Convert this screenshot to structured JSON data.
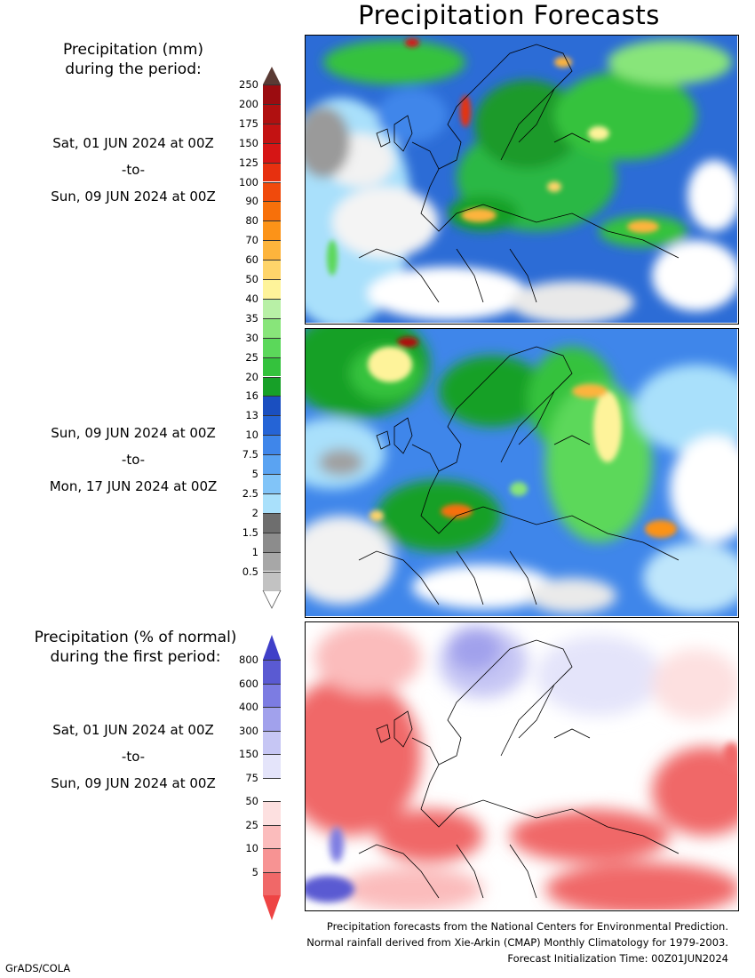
{
  "title": "Precipitation Forecasts",
  "legend_mm": {
    "heading_line1": "Precipitation (mm)",
    "heading_line2": "during the period:",
    "levels": [
      "250",
      "200",
      "175",
      "150",
      "125",
      "100",
      "90",
      "80",
      "70",
      "60",
      "50",
      "40",
      "35",
      "30",
      "25",
      "20",
      "16",
      "13",
      "10",
      "7.5",
      "5",
      "2.5",
      "2",
      "1.5",
      "1",
      "0.5"
    ],
    "colors": [
      "#9b0c10",
      "#b01010",
      "#c31212",
      "#d61515",
      "#e7300f",
      "#f04a0c",
      "#f7700a",
      "#fc9318",
      "#fdb43c",
      "#fed46a",
      "#fef39a",
      "#b8f0a6",
      "#88e57a",
      "#5bd85a",
      "#34c23d",
      "#17a028",
      "#1a4fc0",
      "#2564d6",
      "#3f86ea",
      "#5aa3f2",
      "#81c4f8",
      "#a9e0fb",
      "#6e6e6e",
      "#8c8c8c",
      "#a7a7a7",
      "#c2c2c2"
    ],
    "top_arrow_color": "#5a3a34"
  },
  "period1": {
    "start": "Sat, 01 JUN 2024 at 00Z",
    "sep": "-to-",
    "end": "Sun, 09 JUN 2024 at 00Z"
  },
  "period2": {
    "start": "Sun, 09 JUN 2024 at 00Z",
    "sep": "-to-",
    "end": "Mon, 17 JUN 2024 at 00Z"
  },
  "legend_pct": {
    "heading_line1": "Precipitation (% of normal)",
    "heading_line2": "during the first period:",
    "levels": [
      "800",
      "600",
      "400",
      "300",
      "150",
      "75",
      "50",
      "25",
      "10",
      "5"
    ],
    "colors": [
      "#5a5ad2",
      "#7c7ce2",
      "#a1a1ec",
      "#c6c6f4",
      "#e4e4fa",
      "#ffffff",
      "#fde0e0",
      "#fbbcbc",
      "#f79393",
      "#f06868"
    ],
    "top_arrow_color": "#3f3fc8",
    "bottom_arrow_color": "#ee4444"
  },
  "period3": {
    "start": "Sat, 01 JUN 2024 at 00Z",
    "sep": "-to-",
    "end": "Sun, 09 JUN 2024 at 00Z"
  },
  "credits": {
    "line1": "Precipitation forecasts from the National Centers for Environmental Prediction.",
    "line2": "Normal rainfall derived from Xie-Arkin (CMAP) Monthly Climatology for 1979-2003.",
    "line3": "Forecast Initialization Time: 00Z01JUN2024"
  },
  "footer": "GrADS/COLA"
}
